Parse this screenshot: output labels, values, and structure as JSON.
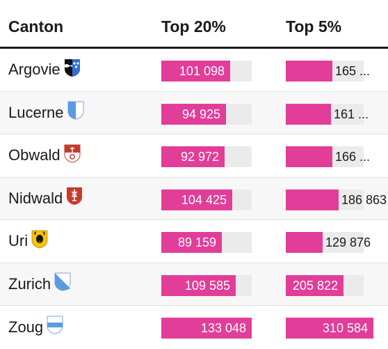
{
  "header": {
    "canton": "Canton",
    "top20": "Top 20%",
    "top5": "Top 5%"
  },
  "colors": {
    "bar_fill": "#e23d98",
    "bar_track": "#ebebeb",
    "row_alt": "#f7f7f7",
    "header_rule": "#1a1a1a"
  },
  "rows": [
    {
      "canton": "Argovie",
      "icon": "argovie-crest-icon",
      "top20": {
        "label": "101 098",
        "value": 101098
      },
      "top5": {
        "label": "165 ...",
        "value": 165000
      }
    },
    {
      "canton": "Lucerne",
      "icon": "lucerne-crest-icon",
      "top20": {
        "label": "94 925",
        "value": 94925
      },
      "top5": {
        "label": "161 ...",
        "value": 161000
      }
    },
    {
      "canton": "Obwald",
      "icon": "obwald-crest-icon",
      "top20": {
        "label": "92 972",
        "value": 92972
      },
      "top5": {
        "label": "166 ...",
        "value": 166000
      }
    },
    {
      "canton": "Nidwald",
      "icon": "nidwald-crest-icon",
      "top20": {
        "label": "104 425",
        "value": 104425
      },
      "top5": {
        "label": "186 863",
        "value": 186863
      }
    },
    {
      "canton": "Uri",
      "icon": "uri-crest-icon",
      "top20": {
        "label": "89 159",
        "value": 89159
      },
      "top5": {
        "label": "129 876",
        "value": 129876
      }
    },
    {
      "canton": "Zurich",
      "icon": "zurich-crest-icon",
      "top20": {
        "label": "109 585",
        "value": 109585
      },
      "top5": {
        "label": "205 822",
        "value": 205822
      }
    },
    {
      "canton": "Zoug",
      "icon": "zoug-crest-icon",
      "top20": {
        "label": "133 048",
        "value": 133048
      },
      "top5": {
        "label": "310 584",
        "value": 310584
      }
    }
  ]
}
